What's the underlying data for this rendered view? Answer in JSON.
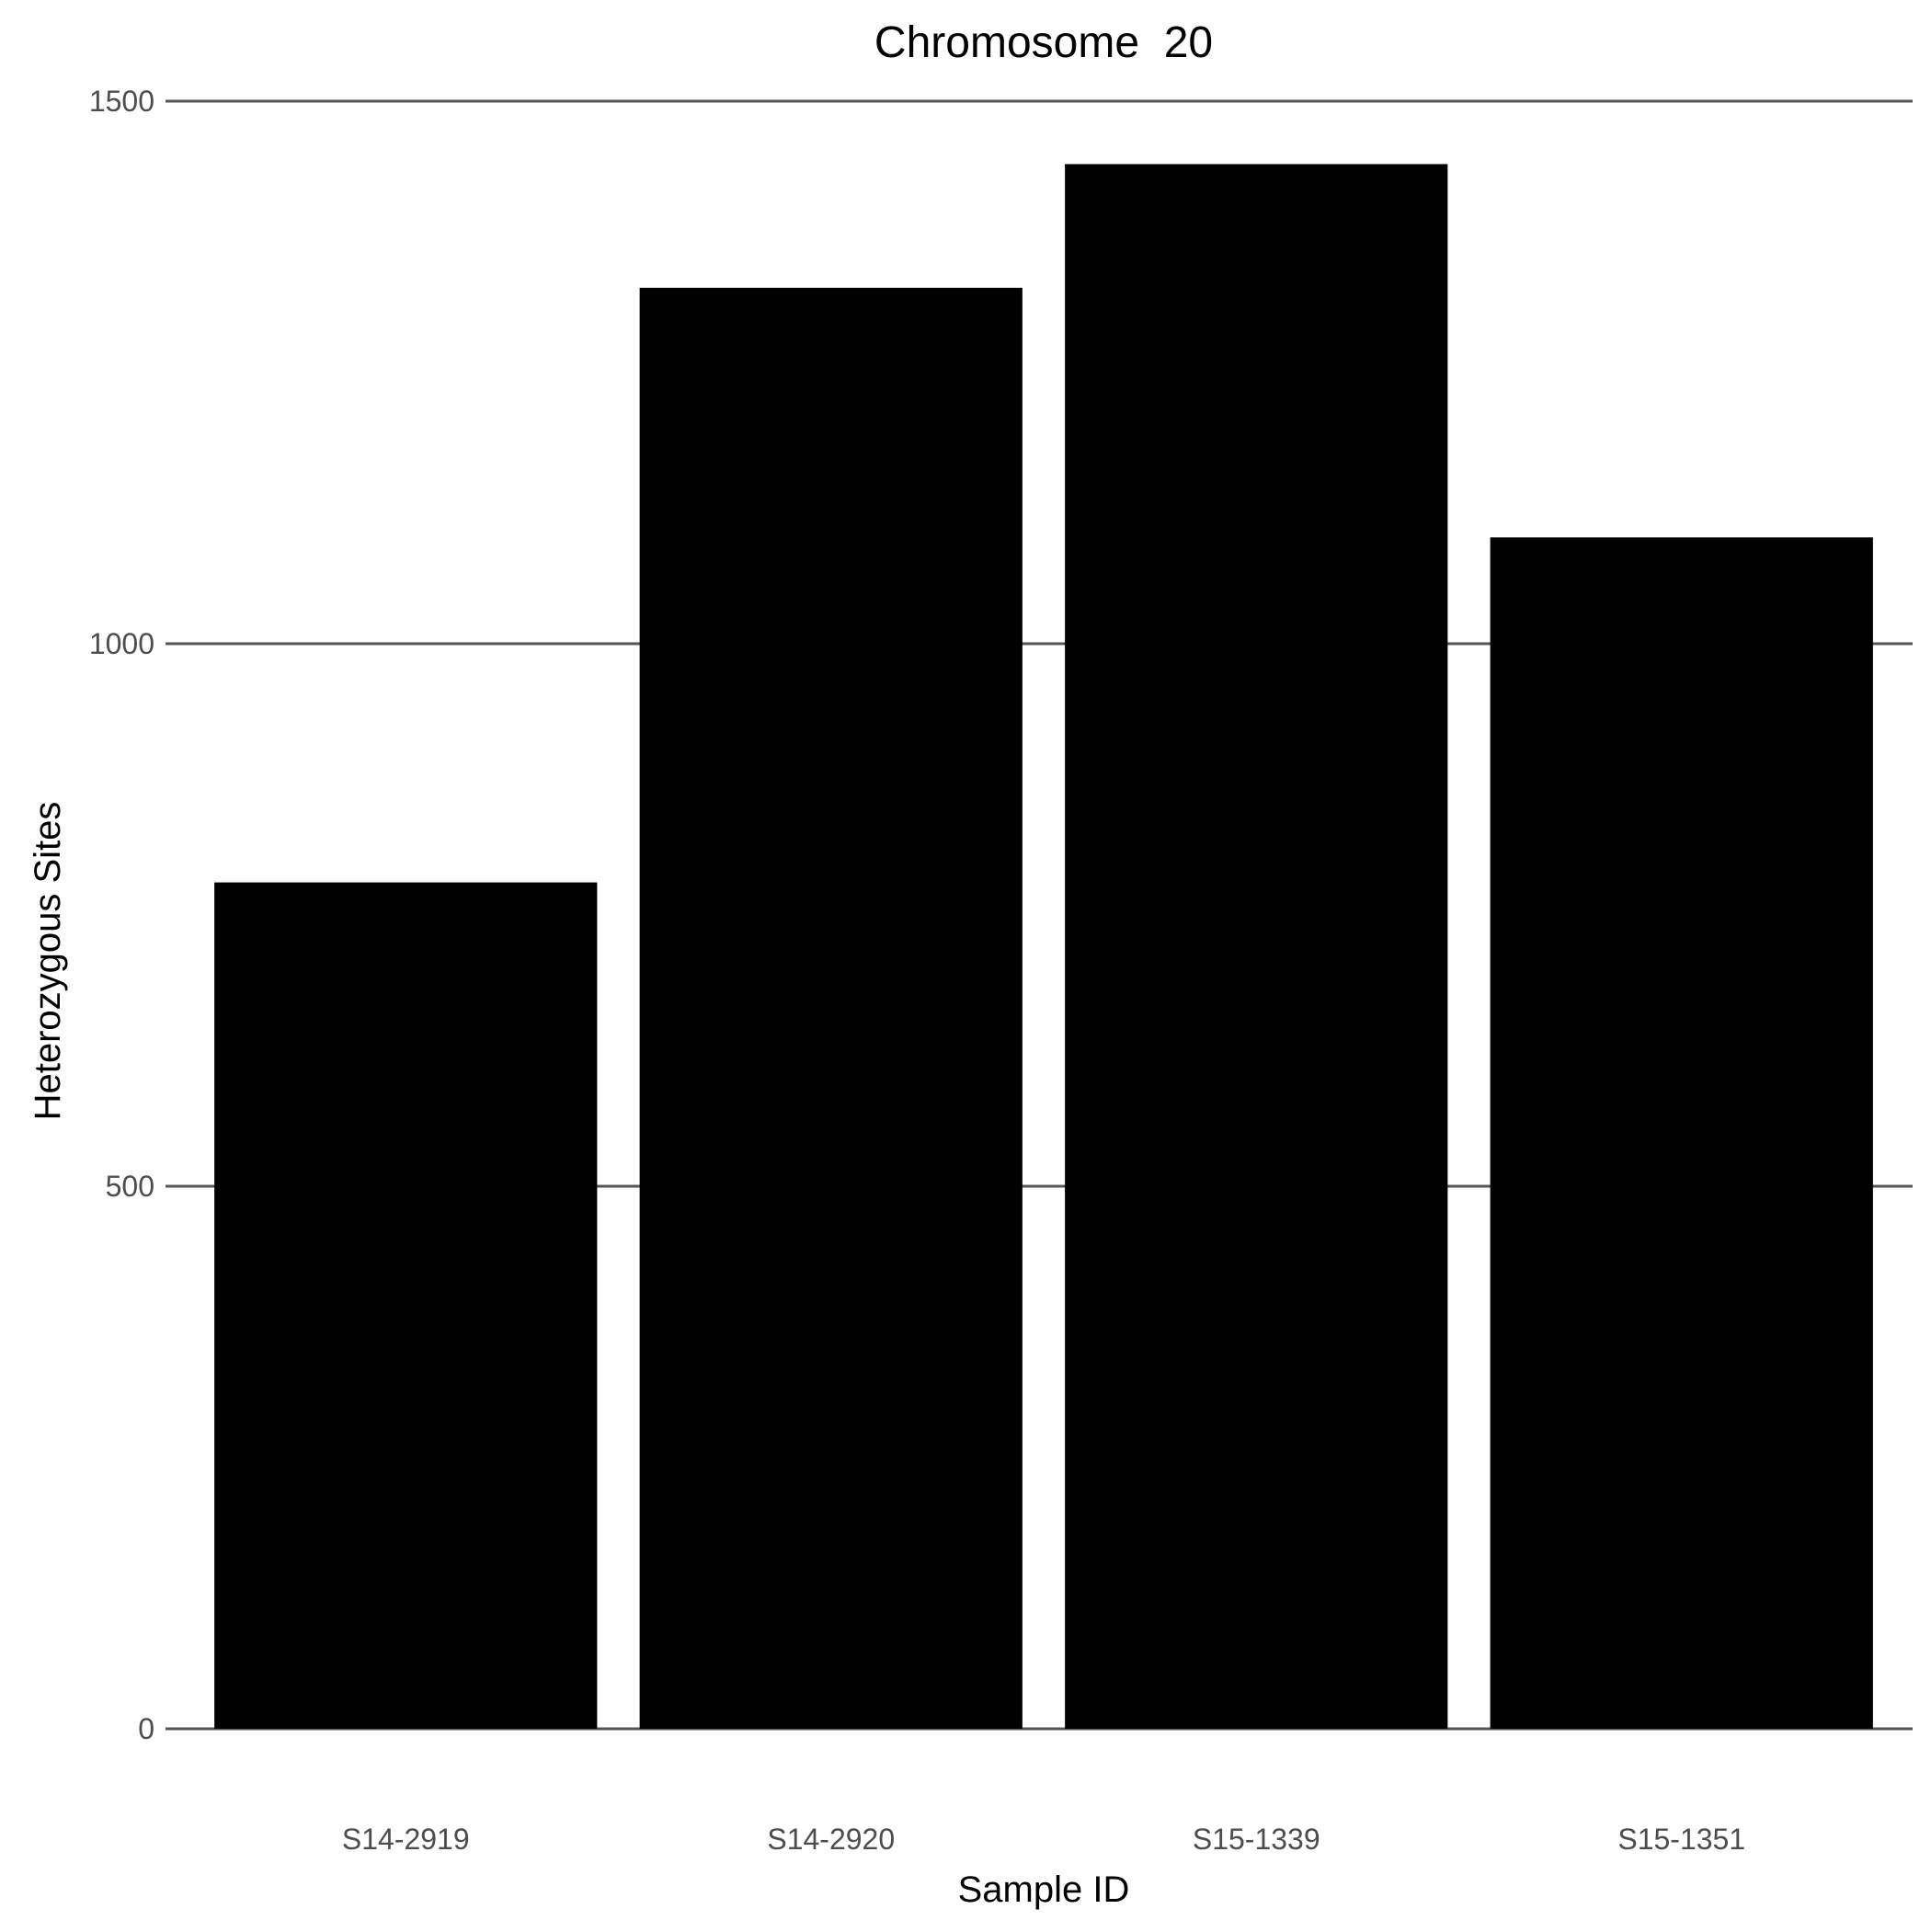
{
  "chart_data": {
    "type": "bar",
    "title": "Chromosome  20",
    "xlabel": "Sample ID",
    "ylabel": "Heterozygous Sites",
    "categories": [
      "S14-2919",
      "S14-2920",
      "S15-1339",
      "S15-1351"
    ],
    "values": [
      780,
      1328,
      1442,
      1098
    ],
    "ylim": [
      0,
      1500
    ],
    "yticks": [
      0,
      500,
      1000,
      1500
    ],
    "grid": "horizontal major",
    "legend": "none",
    "colors": {
      "bar": "#000000",
      "grid": "#555555",
      "tick_text": "#4d4d4d",
      "title_text": "#000000"
    }
  }
}
